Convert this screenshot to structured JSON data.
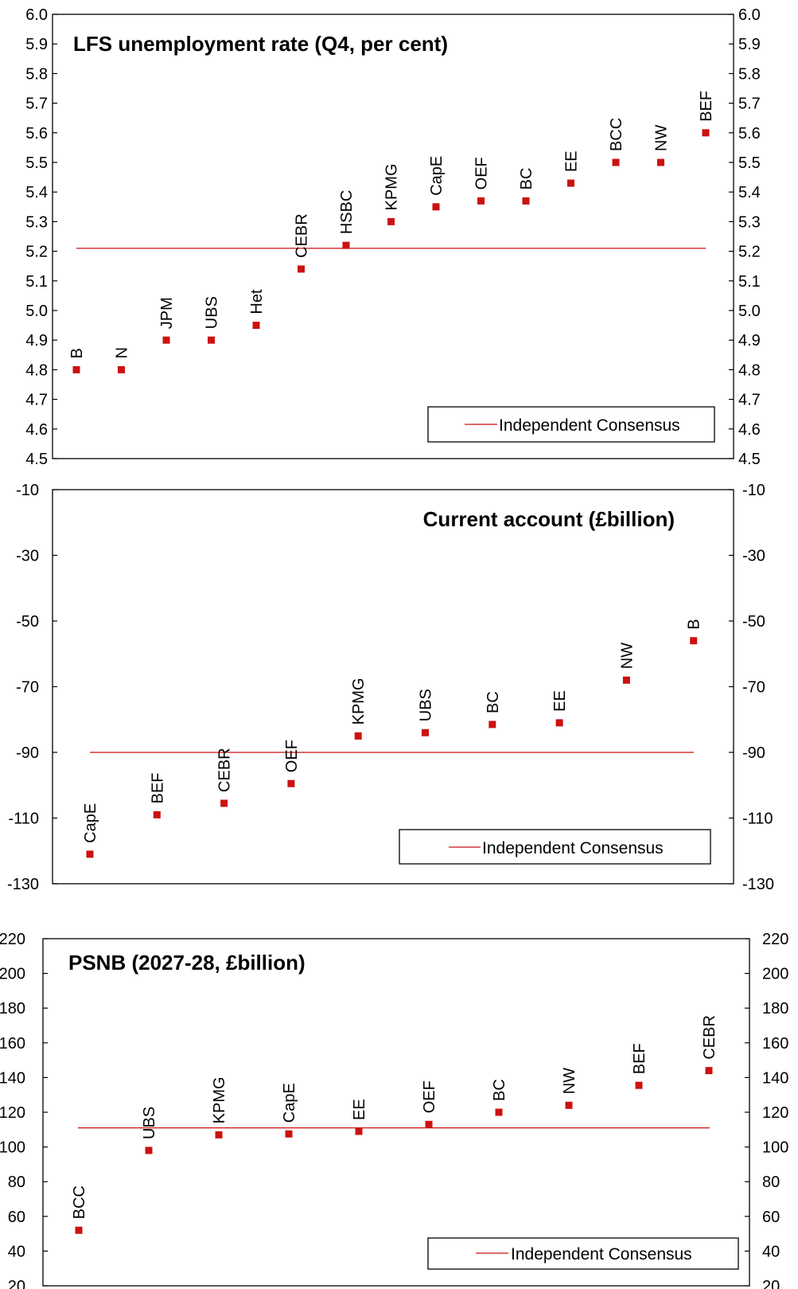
{
  "colors": {
    "marker": "#cc1111",
    "consensus_line": "#cc1111",
    "axis": "#000000"
  },
  "chart_data": [
    {
      "type": "scatter",
      "title": "LFS unemployment rate (Q4, per cent)",
      "ylim": [
        4.5,
        6.0
      ],
      "yticks": [
        "6.0",
        "5.9",
        "5.8",
        "5.7",
        "5.6",
        "5.5",
        "5.4",
        "5.3",
        "5.2",
        "5.1",
        "5.0",
        "4.9",
        "4.8",
        "4.7",
        "4.6",
        "4.5"
      ],
      "points": [
        {
          "label": "B",
          "value": 4.8
        },
        {
          "label": "N",
          "value": 4.8
        },
        {
          "label": "JPM",
          "value": 4.9
        },
        {
          "label": "UBS",
          "value": 4.9
        },
        {
          "label": "Het",
          "value": 4.95
        },
        {
          "label": "CEBR",
          "value": 5.14
        },
        {
          "label": "HSBC",
          "value": 5.22
        },
        {
          "label": "KPMG",
          "value": 5.3
        },
        {
          "label": "CapE",
          "value": 5.35
        },
        {
          "label": "OEF",
          "value": 5.37
        },
        {
          "label": "BC",
          "value": 5.37
        },
        {
          "label": "EE",
          "value": 5.43
        },
        {
          "label": "BCC",
          "value": 5.5
        },
        {
          "label": "NW",
          "value": 5.5
        },
        {
          "label": "BEF",
          "value": 5.6
        }
      ],
      "consensus": 5.21,
      "legend": "Independent Consensus",
      "grid": false
    },
    {
      "type": "scatter",
      "title": "Current account (£billion)",
      "ylim": [
        -130,
        -10
      ],
      "yticks": [
        "-10",
        "-30",
        "-50",
        "-70",
        "-90",
        "-110",
        "-130"
      ],
      "points": [
        {
          "label": "CapE",
          "value": -121
        },
        {
          "label": "BEF",
          "value": -109
        },
        {
          "label": "CEBR",
          "value": -105.5
        },
        {
          "label": "OEF",
          "value": -99.5
        },
        {
          "label": "KPMG",
          "value": -85
        },
        {
          "label": "UBS",
          "value": -84
        },
        {
          "label": "BC",
          "value": -81.5
        },
        {
          "label": "EE",
          "value": -81
        },
        {
          "label": "NW",
          "value": -68
        },
        {
          "label": "B",
          "value": -56
        }
      ],
      "consensus": -90,
      "legend": "Independent Consensus",
      "grid": false
    },
    {
      "type": "scatter",
      "title": "PSNB (2027-28, £billion)",
      "ylim": [
        20,
        220
      ],
      "yticks_left": [
        "220",
        "200",
        "180",
        "160",
        "140",
        "120",
        "100",
        "80",
        "60",
        "40",
        "20"
      ],
      "yticks_right": [
        "220",
        "200",
        "180",
        "160",
        "140",
        "120",
        "100",
        "80",
        "60",
        "40",
        "20"
      ],
      "points": [
        {
          "label": "BCC",
          "value": 52
        },
        {
          "label": "UBS",
          "value": 98
        },
        {
          "label": "KPMG",
          "value": 107
        },
        {
          "label": "CapE",
          "value": 107.5
        },
        {
          "label": "EE",
          "value": 109
        },
        {
          "label": "OEF",
          "value": 113
        },
        {
          "label": "BC",
          "value": 120
        },
        {
          "label": "NW",
          "value": 124
        },
        {
          "label": "BEF",
          "value": 135.5
        },
        {
          "label": "CEBR",
          "value": 144
        }
      ],
      "consensus": 111,
      "legend": "Independent Consensus",
      "grid": false
    }
  ]
}
